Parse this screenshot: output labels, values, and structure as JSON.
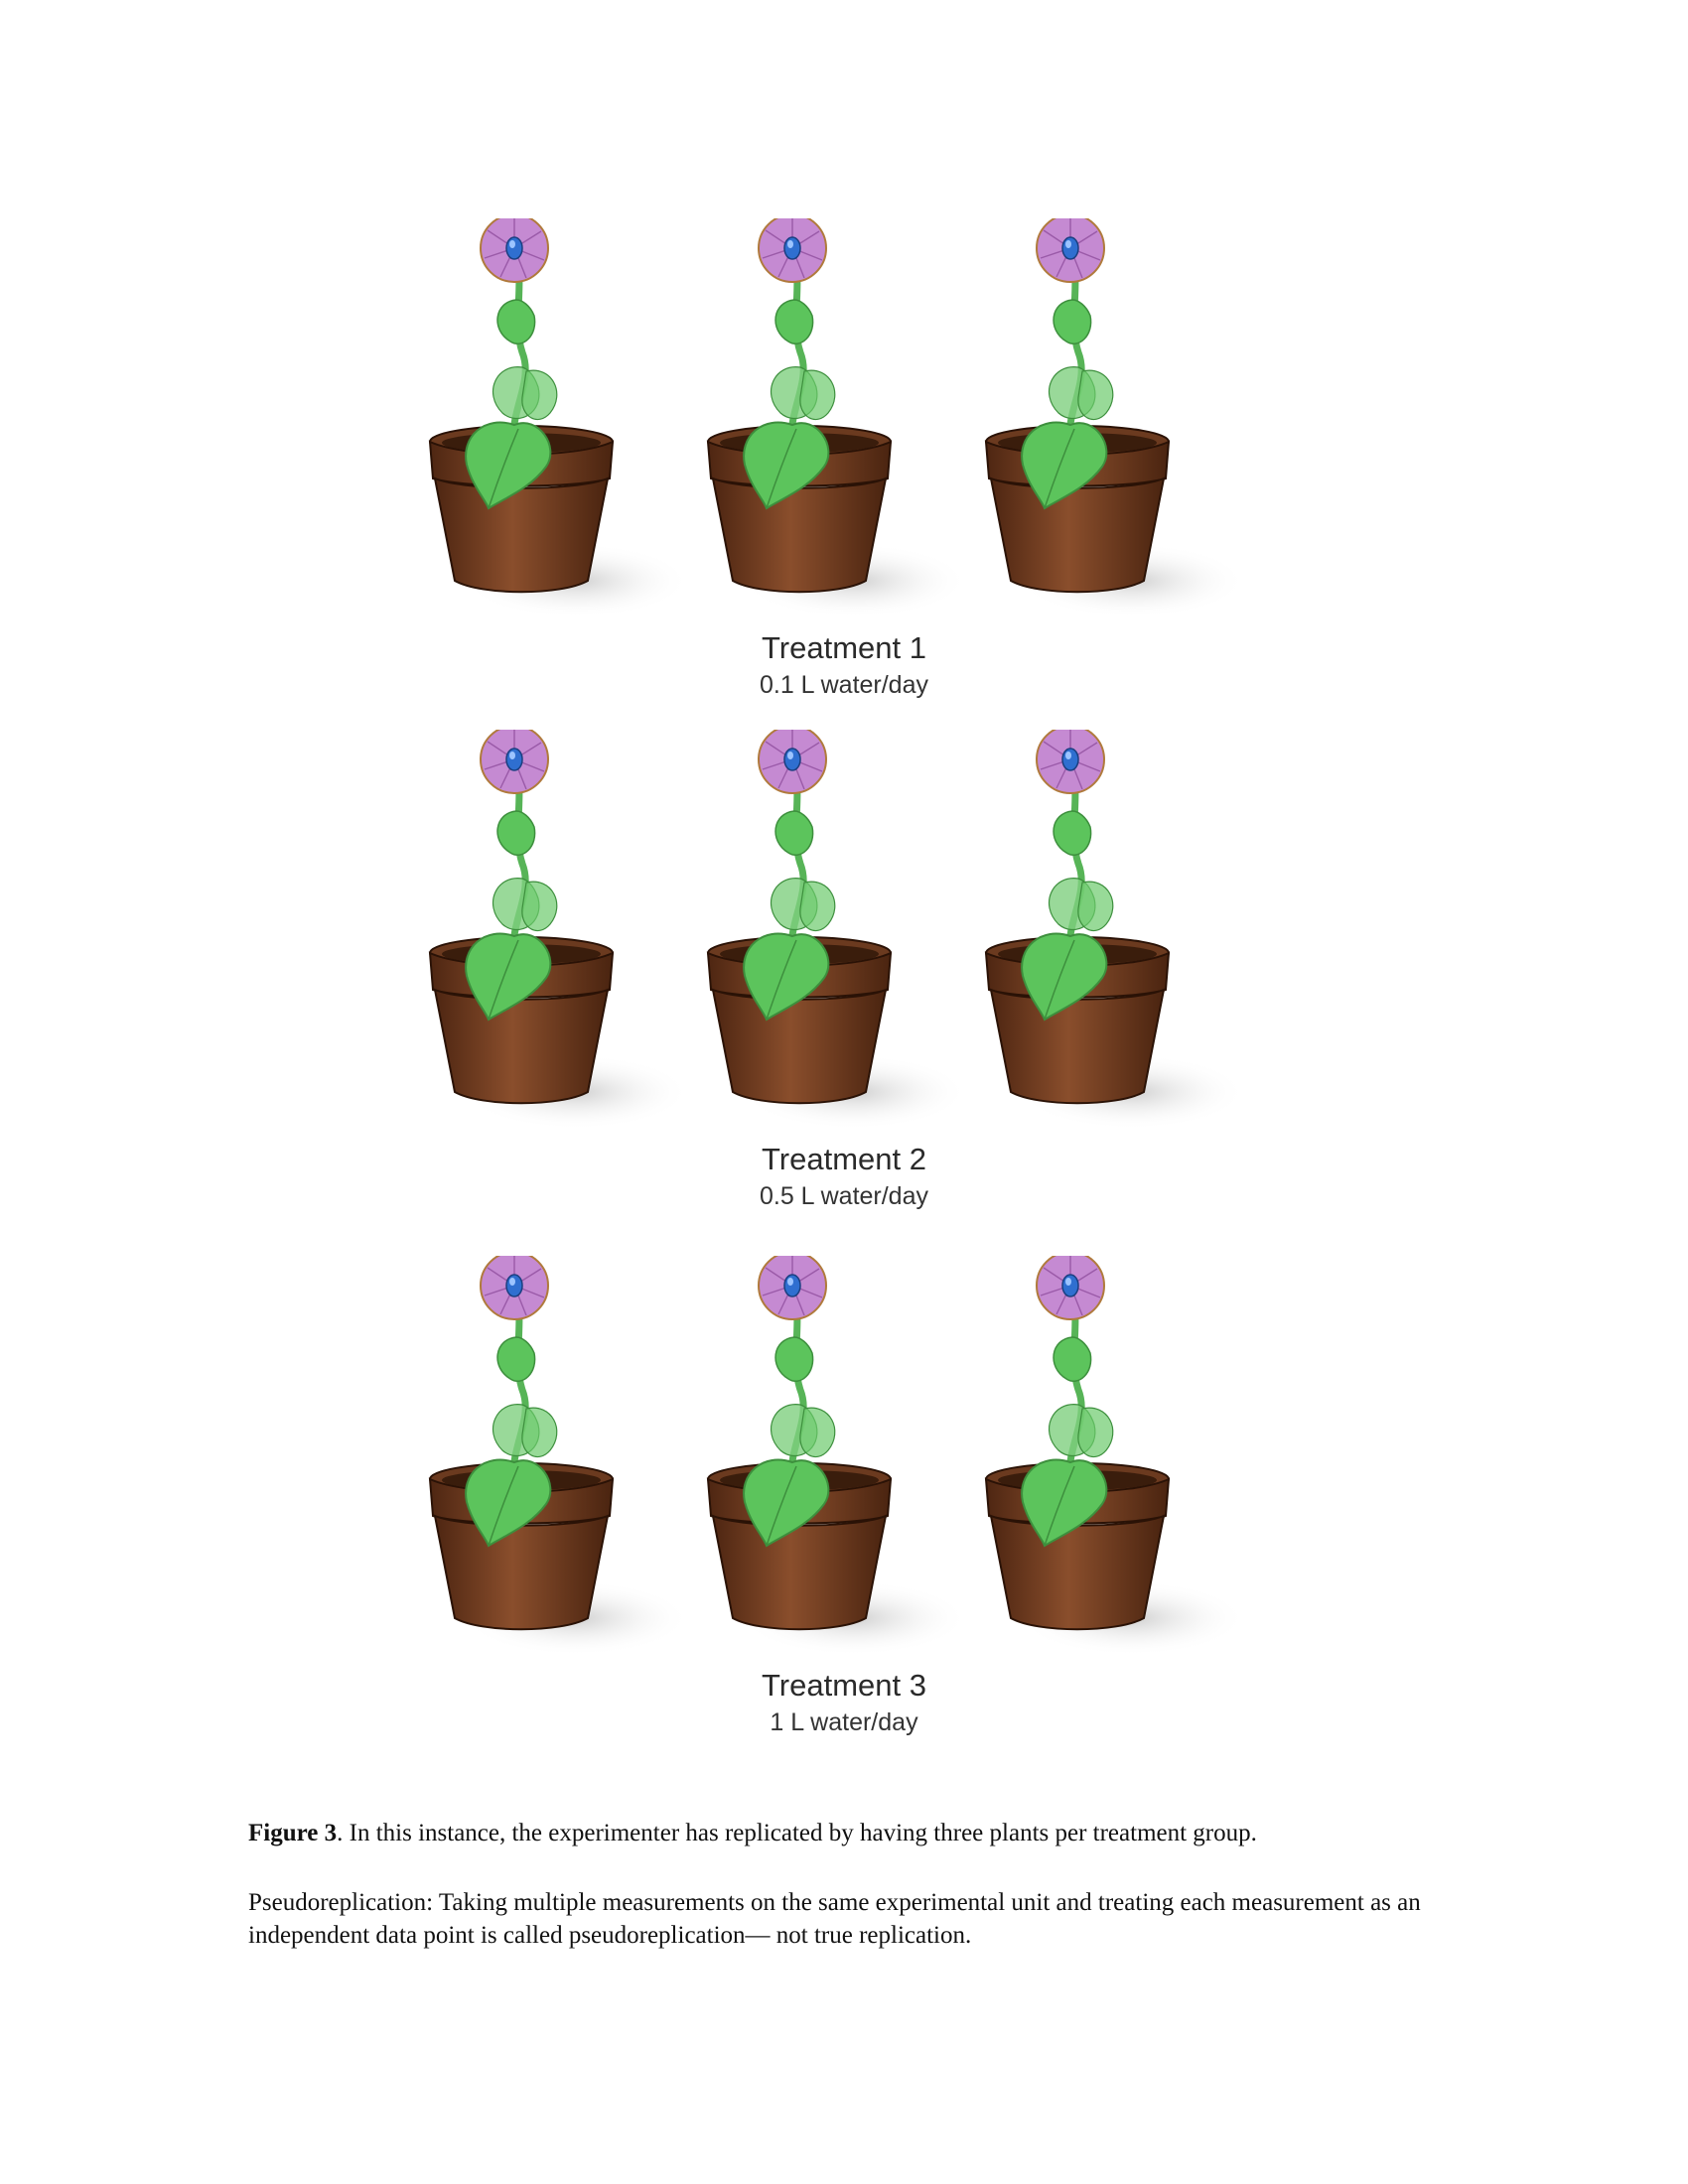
{
  "figure": {
    "groups": [
      {
        "label": "Treatment 1",
        "dose": "0.1 L water/day",
        "plants": 3
      },
      {
        "label": "Treatment 2",
        "dose": "0.5 L water/day",
        "plants": 3
      },
      {
        "label": "Treatment 3",
        "dose": "1 L water/day",
        "plants": 3
      }
    ]
  },
  "caption": {
    "figure_ref": "Figure 3",
    "text": ". In this instance, the experimenter has replicated by having three plants per treatment group."
  },
  "note": {
    "text": "Pseudoreplication: Taking multiple measurements on the same experimental unit and treating each measurement as an independent data point is called pseudoreplication— not true replication."
  },
  "colors": {
    "pot": "#7a4226",
    "leaf": "#5cc45c",
    "petal": "#c58ad2",
    "flower_center": "#2f6fd0",
    "shadow": "#d9d9d9"
  }
}
